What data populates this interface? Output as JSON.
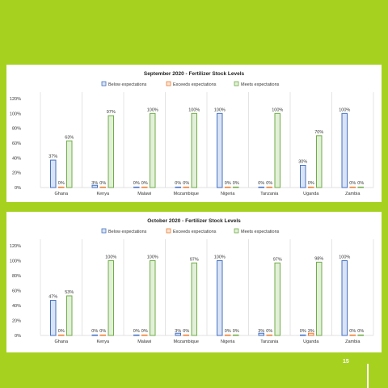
{
  "page_number": "15",
  "colors": {
    "below": "#4472c4",
    "below_fill": "#dae3f3",
    "exceeds": "#ed7d31",
    "exceeds_fill": "#fbe5d6",
    "meets": "#70ad47",
    "meets_fill": "#e2f0d9",
    "grid": "#d9d9d9",
    "page_background": "#a6d11f"
  },
  "chart_data": [
    {
      "type": "bar",
      "title": "September 2020 - Fertilizer Stock Levels",
      "categories": [
        "Ghana",
        "Kenya",
        "Malawi",
        "Mozambique",
        "Nigeria",
        "Tanzania",
        "Uganda",
        "Zambia"
      ],
      "series": [
        {
          "name": "Below expectations",
          "values": [
            37,
            3,
            0,
            0,
            100,
            0,
            30,
            100
          ],
          "labels": [
            "37%",
            "3%",
            "0%",
            "0%",
            "100%",
            "0%",
            "30%",
            "100%"
          ]
        },
        {
          "name": "Exceeds expectations",
          "values": [
            0,
            0,
            0,
            0,
            0,
            0,
            0,
            0
          ],
          "labels": [
            "0%",
            "0%",
            "0%",
            "0%",
            "0%",
            "0%",
            "0%",
            "0%"
          ]
        },
        {
          "name": "Meets expectations",
          "values": [
            63,
            97,
            100,
            100,
            0,
            100,
            70,
            0
          ],
          "labels": [
            "63%",
            "97%",
            "100%",
            "100%",
            "0%",
            "100%",
            "70%",
            "0%"
          ]
        }
      ],
      "ylim": [
        0,
        120
      ],
      "yticks": [
        "0%",
        "20%",
        "40%",
        "60%",
        "80%",
        "100%",
        "120%"
      ],
      "legend": "top",
      "grid": true
    },
    {
      "type": "bar",
      "title": "October 2020 - Fertilizer Stock Levels",
      "categories": [
        "Ghana",
        "Kenya",
        "Malawi",
        "Mozambique",
        "Nigeria",
        "Tanzania",
        "Uganda",
        "Zambia"
      ],
      "series": [
        {
          "name": "Below expectations",
          "values": [
            47,
            0,
            0,
            3,
            100,
            3,
            0,
            100
          ],
          "labels": [
            "47%",
            "0%",
            "0%",
            "3%",
            "100%",
            "3%",
            "0%",
            "100%"
          ]
        },
        {
          "name": "Exceeds expectations",
          "values": [
            0,
            0,
            0,
            0,
            0,
            0,
            3,
            0
          ],
          "labels": [
            "0%",
            "0%",
            "0%",
            "0%",
            "0%",
            "0%",
            "3%",
            "0%"
          ]
        },
        {
          "name": "Meets expectations",
          "values": [
            53,
            100,
            100,
            97,
            0,
            97,
            98,
            0
          ],
          "labels": [
            "53%",
            "100%",
            "100%",
            "97%",
            "0%",
            "97%",
            "98%",
            "0%"
          ]
        }
      ],
      "ylim": [
        0,
        120
      ],
      "yticks": [
        "0%",
        "20%",
        "40%",
        "60%",
        "80%",
        "100%",
        "120%"
      ],
      "legend": "top",
      "grid": true
    }
  ]
}
